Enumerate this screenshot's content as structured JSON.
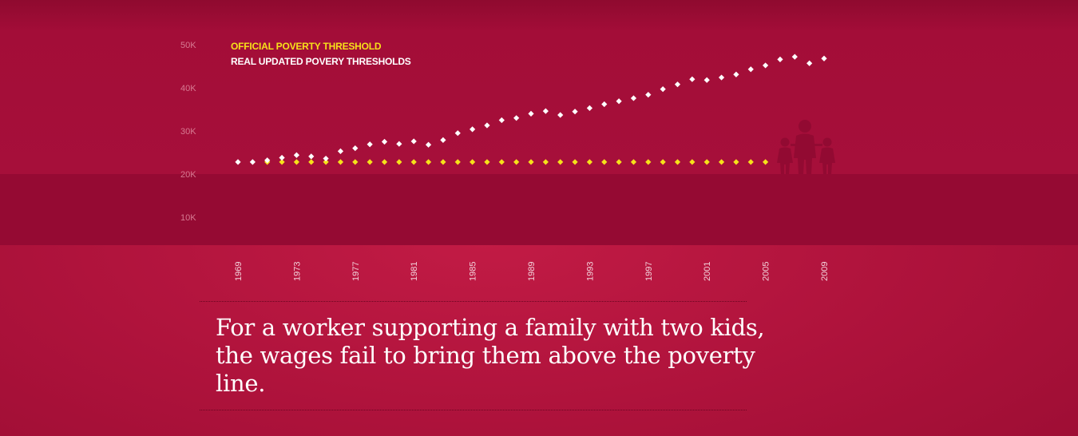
{
  "chart_data": {
    "type": "scatter",
    "title": "",
    "xlabel": "",
    "ylabel": "",
    "ylim": [
      0,
      55000
    ],
    "xlim": [
      1969,
      2009
    ],
    "y_ticks": [
      {
        "value": 50000,
        "label": "50K"
      },
      {
        "value": 40000,
        "label": "40K"
      },
      {
        "value": 30000,
        "label": "30K"
      },
      {
        "value": 20000,
        "label": "20K"
      },
      {
        "value": 10000,
        "label": "10K"
      }
    ],
    "x_ticks": [
      {
        "value": 1969,
        "label": "1969"
      },
      {
        "value": 1973,
        "label": "1973"
      },
      {
        "value": 1977,
        "label": "1977"
      },
      {
        "value": 1981,
        "label": "1981"
      },
      {
        "value": 1985,
        "label": "1985"
      },
      {
        "value": 1989,
        "label": "1989"
      },
      {
        "value": 1993,
        "label": "1993"
      },
      {
        "value": 1997,
        "label": "1997"
      },
      {
        "value": 2001,
        "label": "2001"
      },
      {
        "value": 2005,
        "label": "2005"
      },
      {
        "value": 2009,
        "label": "2009"
      }
    ],
    "legend_position": "top-left",
    "series": [
      {
        "name": "OFFICIAL POVERTY THRESHOLD",
        "color": "#f6e11a",
        "points": [
          [
            1971,
            22800
          ],
          [
            1972,
            22800
          ],
          [
            1973,
            22800
          ],
          [
            1974,
            22800
          ],
          [
            1975,
            22800
          ],
          [
            1976,
            22800
          ],
          [
            1977,
            22800
          ],
          [
            1978,
            22800
          ],
          [
            1979,
            22800
          ],
          [
            1980,
            22800
          ],
          [
            1981,
            22800
          ],
          [
            1982,
            22800
          ],
          [
            1983,
            22800
          ],
          [
            1984,
            22800
          ],
          [
            1985,
            22800
          ],
          [
            1986,
            22800
          ],
          [
            1987,
            22800
          ],
          [
            1988,
            22800
          ],
          [
            1989,
            22800
          ],
          [
            1990,
            22800
          ],
          [
            1991,
            22800
          ],
          [
            1992,
            22800
          ],
          [
            1993,
            22800
          ],
          [
            1994,
            22800
          ],
          [
            1995,
            22800
          ],
          [
            1996,
            22800
          ],
          [
            1997,
            22800
          ],
          [
            1998,
            22800
          ],
          [
            1999,
            22800
          ],
          [
            2000,
            22800
          ],
          [
            2001,
            22800
          ],
          [
            2002,
            22800
          ],
          [
            2003,
            22800
          ],
          [
            2004,
            22800
          ],
          [
            2005,
            22800
          ]
        ]
      },
      {
        "name": "REAL UPDATED POVERY THRESHOLDS",
        "color": "#ffffff",
        "points": [
          [
            1969,
            22800
          ],
          [
            1970,
            22800
          ],
          [
            1971,
            23200
          ],
          [
            1972,
            23800
          ],
          [
            1973,
            24400
          ],
          [
            1974,
            24100
          ],
          [
            1975,
            23600
          ],
          [
            1976,
            25300
          ],
          [
            1977,
            26000
          ],
          [
            1978,
            26900
          ],
          [
            1979,
            27500
          ],
          [
            1980,
            27000
          ],
          [
            1981,
            27600
          ],
          [
            1982,
            26800
          ],
          [
            1983,
            27900
          ],
          [
            1984,
            29500
          ],
          [
            1985,
            30400
          ],
          [
            1986,
            31300
          ],
          [
            1987,
            32500
          ],
          [
            1988,
            33000
          ],
          [
            1989,
            34000
          ],
          [
            1990,
            34600
          ],
          [
            1991,
            33700
          ],
          [
            1992,
            34500
          ],
          [
            1993,
            35300
          ],
          [
            1994,
            36200
          ],
          [
            1995,
            36900
          ],
          [
            1996,
            37600
          ],
          [
            1997,
            38400
          ],
          [
            1998,
            39700
          ],
          [
            1999,
            40800
          ],
          [
            2000,
            42000
          ],
          [
            2001,
            41800
          ],
          [
            2002,
            42400
          ],
          [
            2003,
            43100
          ],
          [
            2004,
            44300
          ],
          [
            2005,
            45200
          ],
          [
            2006,
            46600
          ],
          [
            2007,
            47200
          ],
          [
            2008,
            45700
          ],
          [
            2009,
            46800
          ]
        ]
      }
    ]
  },
  "caption": "For a worker supporting a family with two kids, the wages fail to bring them above the poverty line.",
  "colors": {
    "background": "#ad123b",
    "band": "#950a33",
    "family_icon": "#920a32"
  },
  "icons": {
    "family": "family-icon"
  }
}
